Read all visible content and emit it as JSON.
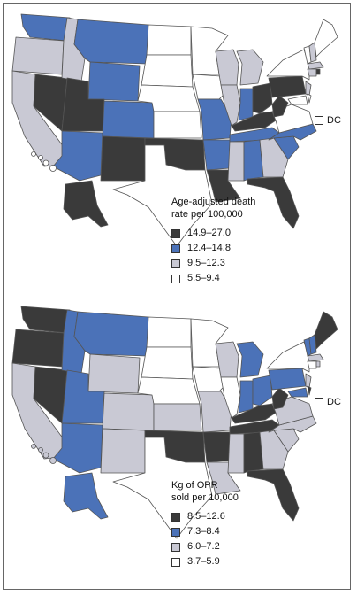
{
  "colors": {
    "dark": "#3a3a3a",
    "blue": "#4b72b8",
    "light": "#c9c9d4",
    "white": "#ffffff",
    "outline": "#555555"
  },
  "maps": [
    {
      "legend_title_1": "Age-adjusted death",
      "legend_title_2": "rate per 100,000",
      "dc_label": "DC",
      "legend": [
        {
          "label": "14.9–27.0",
          "color": "#3a3a3a"
        },
        {
          "label": "12.4–14.8",
          "color": "#4b72b8"
        },
        {
          "label": "9.5–12.3",
          "color": "#c9c9d4"
        },
        {
          "label": "5.5–9.4",
          "color": "#ffffff"
        }
      ]
    },
    {
      "legend_title_1": "Kg of OPR",
      "legend_title_2": "sold per 10,000",
      "dc_label": "DC",
      "legend": [
        {
          "label": "8.5–12.6",
          "color": "#3a3a3a"
        },
        {
          "label": "7.3–8.4",
          "color": "#4b72b8"
        },
        {
          "label": "6.0–7.2",
          "color": "#c9c9d4"
        },
        {
          "label": "3.7–5.9",
          "color": "#ffffff"
        }
      ]
    }
  ]
}
